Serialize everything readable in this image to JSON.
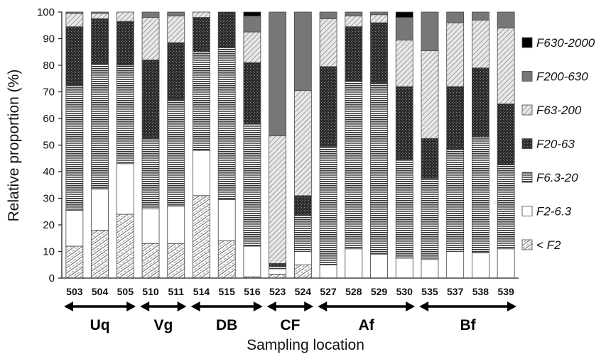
{
  "chart_data": {
    "type": "bar",
    "stacked": true,
    "xlabel": "Sampling location",
    "ylabel": "Relative proportion (%)",
    "ylim": [
      0,
      100
    ],
    "yticks": [
      0,
      10,
      20,
      30,
      40,
      50,
      60,
      70,
      80,
      90,
      100
    ],
    "categories": [
      "503",
      "504",
      "505",
      "510",
      "511",
      "514",
      "515",
      "516",
      "523",
      "524",
      "527",
      "528",
      "529",
      "530",
      "535",
      "537",
      "538",
      "539"
    ],
    "groups": [
      {
        "label": "Uq",
        "categories": [
          "503",
          "504",
          "505"
        ]
      },
      {
        "label": "Vg",
        "categories": [
          "510",
          "511"
        ]
      },
      {
        "label": "DB",
        "categories": [
          "514",
          "515",
          "516"
        ]
      },
      {
        "label": "CF",
        "categories": [
          "523",
          "524"
        ]
      },
      {
        "label": "Af",
        "categories": [
          "527",
          "528",
          "529",
          "530"
        ]
      },
      {
        "label": "Bf",
        "categories": [
          "535",
          "537",
          "538",
          "539"
        ]
      }
    ],
    "legend_position": "right",
    "series": [
      {
        "name": "< F2",
        "color": "#ffffff",
        "pattern": "diagonal-dashed",
        "values": [
          12,
          18,
          24,
          13,
          13,
          31,
          14,
          0.5,
          1.5,
          5,
          0,
          0,
          0,
          0,
          0,
          0,
          0,
          0
        ]
      },
      {
        "name": "F2-6.3",
        "color": "#ffffff",
        "pattern": "solid",
        "values": [
          13.5,
          15.5,
          19,
          13,
          14,
          17,
          15.5,
          11.5,
          2,
          5,
          5,
          11,
          9,
          7.5,
          7,
          10,
          9.5,
          11
        ]
      },
      {
        "name": "F6.3-20",
        "color": "#333333",
        "pattern": "horizontal-lines",
        "values": [
          47,
          47,
          37,
          26.5,
          40,
          37,
          57,
          46,
          1,
          13.5,
          44.5,
          63,
          64,
          37,
          30.5,
          38.5,
          43.5,
          31.5
        ]
      },
      {
        "name": "F20-63",
        "color": "#333333",
        "pattern": "dense-dark",
        "values": [
          22,
          17,
          16.5,
          29.5,
          21.5,
          13,
          13.5,
          23,
          1,
          7.5,
          30,
          20.5,
          23,
          27.5,
          15,
          23.5,
          26,
          23
        ]
      },
      {
        "name": "F63-200",
        "color": "#bbbbbb",
        "pattern": "diagonal-hatch",
        "values": [
          5,
          2,
          3.5,
          16,
          10,
          2,
          0,
          11.5,
          48,
          39.5,
          18,
          4,
          3,
          17.5,
          33,
          24,
          18,
          28.5
        ]
      },
      {
        "name": "F200-630",
        "color": "#777777",
        "pattern": "solid",
        "values": [
          0.5,
          0.5,
          0,
          2,
          1.5,
          0,
          0,
          6,
          46.5,
          29.5,
          2.5,
          1.5,
          1,
          8.5,
          14.5,
          4,
          3,
          6
        ]
      },
      {
        "name": "F630-2000",
        "color": "#000000",
        "pattern": "solid",
        "values": [
          0,
          0,
          0,
          0,
          0,
          0,
          0,
          1.5,
          0,
          0,
          0,
          0,
          0,
          2,
          0,
          0,
          0,
          0
        ]
      }
    ],
    "legend_order": [
      "F630-2000",
      "F200-630",
      "F63-200",
      "F20-63",
      "F6.3-20",
      "F2-6.3",
      "< F2"
    ]
  }
}
